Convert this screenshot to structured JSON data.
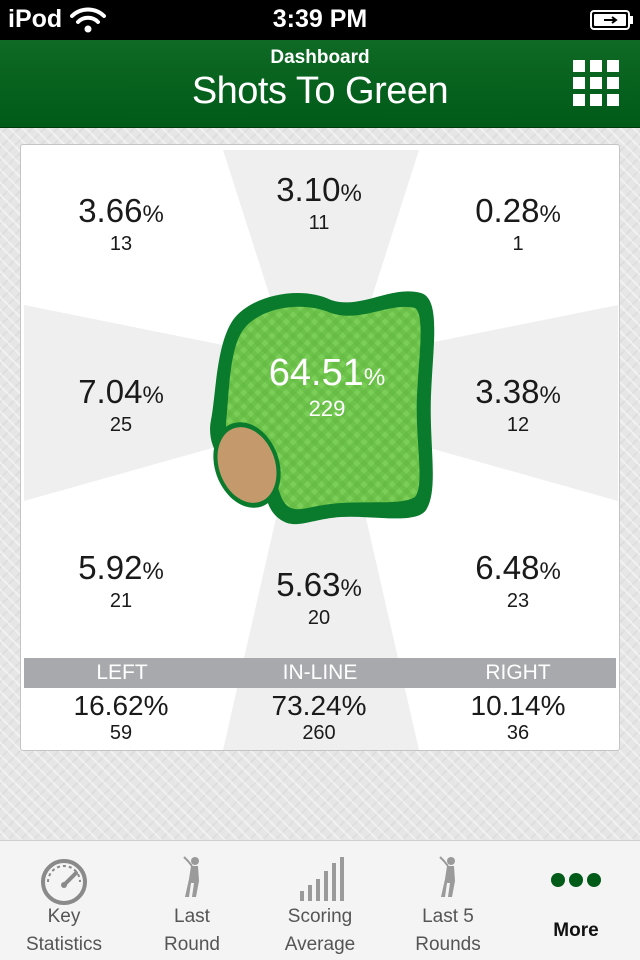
{
  "status_bar": {
    "carrier": "iPod",
    "time": "3:39 PM"
  },
  "header": {
    "subtitle": "Dashboard",
    "title": "Shots To Green"
  },
  "zones": {
    "top_left": {
      "pct": "3.66",
      "count": "13"
    },
    "top_center": {
      "pct": "3.10",
      "count": "11"
    },
    "top_right": {
      "pct": "0.28",
      "count": "1"
    },
    "mid_left": {
      "pct": "7.04",
      "count": "25"
    },
    "center": {
      "pct": "64.51",
      "count": "229"
    },
    "mid_right": {
      "pct": "3.38",
      "count": "12"
    },
    "bottom_left": {
      "pct": "5.92",
      "count": "21"
    },
    "bottom_center": {
      "pct": "5.63",
      "count": "20"
    },
    "bottom_right": {
      "pct": "6.48",
      "count": "23"
    }
  },
  "percent_sign": "%",
  "summary": {
    "left": {
      "label": "LEFT",
      "pct": "16.62%",
      "count": "59"
    },
    "inline": {
      "label": "IN-LINE",
      "pct": "73.24%",
      "count": "260"
    },
    "right": {
      "label": "RIGHT",
      "pct": "10.14%",
      "count": "36"
    }
  },
  "tabs": [
    {
      "label": "Key\nStatistics",
      "icon": "speedometer-icon"
    },
    {
      "label": "Last\nRound",
      "icon": "golfer-icon"
    },
    {
      "label": "Scoring\nAverage",
      "icon": "bar-graph-icon"
    },
    {
      "label": "Last 5\nRounds",
      "icon": "golfer-icon"
    },
    {
      "label": "More",
      "icon": "more-dots-icon",
      "active": true
    }
  ],
  "colors": {
    "brand_green": "#005a18",
    "green_surface": "#6cc24a",
    "green_border": "#0a7a2c",
    "bunker": "#c49a6c",
    "band_gray": "#a7a9ac"
  }
}
